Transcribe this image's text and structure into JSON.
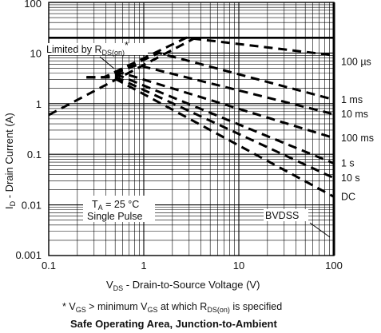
{
  "chart_data": {
    "type": "line",
    "title": "Safe Operating Area, Junction-to-Ambient",
    "xscale": "log",
    "yscale": "log",
    "xlim": [
      0.1,
      100
    ],
    "ylim": [
      0.001,
      100
    ],
    "x_ticks": [
      {
        "value": 0.1,
        "label": "0.1"
      },
      {
        "value": 1,
        "label": "1"
      },
      {
        "value": 10,
        "label": "10"
      },
      {
        "value": 100,
        "label": "100"
      }
    ],
    "y_ticks": [
      {
        "value": 0.001,
        "label": "0.001"
      },
      {
        "value": 0.01,
        "label": "0.01"
      },
      {
        "value": 0.1,
        "label": "0.1"
      },
      {
        "value": 1,
        "label": "1"
      },
      {
        "value": 10,
        "label": "10"
      },
      {
        "value": 100,
        "label": "100"
      }
    ],
    "xlabel": {
      "main": "V",
      "sub": "DS",
      "rest": " - Drain-to-Source Voltage (V)"
    },
    "ylabel": {
      "main": "I",
      "sub": "D",
      "rest": " - Drain Current (A)"
    },
    "grid": true,
    "series": [
      {
        "name": "100 µs",
        "points": [
          [
            0.25,
            3.3
          ],
          [
            0.38,
            3.3
          ],
          [
            2.8,
            20
          ],
          [
            100,
            9
          ]
        ]
      },
      {
        "name": "1 ms",
        "points": [
          [
            0.25,
            3.3
          ],
          [
            0.38,
            3.3
          ],
          [
            1.45,
            10
          ],
          [
            100,
            1.2
          ]
        ]
      },
      {
        "name": "10 ms",
        "points": [
          [
            0.25,
            3.3
          ],
          [
            0.38,
            3.3
          ],
          [
            0.85,
            5.8
          ],
          [
            100,
            0.62
          ]
        ]
      },
      {
        "name": "100 ms",
        "points": [
          [
            0.25,
            3.3
          ],
          [
            0.38,
            3.3
          ],
          [
            0.6,
            4.0
          ],
          [
            100,
            0.21
          ]
        ]
      },
      {
        "name": "1 s",
        "points": [
          [
            0.25,
            3.3
          ],
          [
            0.38,
            3.3
          ],
          [
            0.55,
            3.6
          ],
          [
            100,
            0.066
          ]
        ]
      },
      {
        "name": "10 s",
        "points": [
          [
            0.25,
            3.3
          ],
          [
            0.38,
            3.3
          ],
          [
            0.5,
            3.4
          ],
          [
            100,
            0.034
          ]
        ]
      },
      {
        "name": "DC",
        "points": [
          [
            0.25,
            3.3
          ],
          [
            0.38,
            3.3
          ],
          [
            0.47,
            3.3
          ],
          [
            100,
            0.0145
          ]
        ]
      }
    ],
    "rds_limit": [
      [
        0.1,
        0.6
      ],
      [
        3.5,
        20
      ]
    ],
    "current_limit": [
      [
        0.1,
        20
      ],
      [
        100,
        20
      ]
    ],
    "bvdss": [
      [
        100,
        0.001
      ],
      [
        100,
        100
      ]
    ],
    "annotations": {
      "rds": {
        "main": "Limited by R",
        "sub": "DS(on)",
        "tail": "*"
      },
      "ta_main": "T",
      "ta_sub": "A",
      "ta_rest": " = 25 °C",
      "pulse": "Single Pulse",
      "bvdss": "BVDSS"
    },
    "footnote": {
      "a": "* V",
      "a_sub": "GS",
      "b": " > minimum V",
      "b_sub": "GS",
      "c": " at which R",
      "c_sub": "DS(on)",
      "d": " is specified"
    }
  }
}
